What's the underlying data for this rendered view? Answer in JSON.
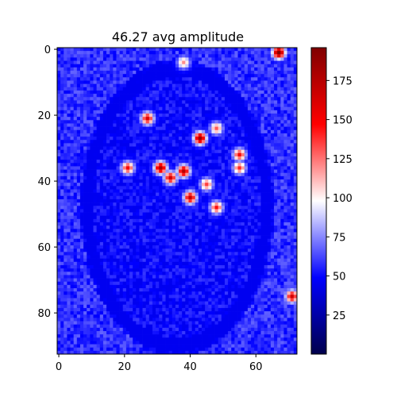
{
  "chart_data": {
    "type": "heatmap",
    "title": "46.27 avg amplitude",
    "xlabel": "",
    "ylabel": "",
    "xlim": [
      0,
      72
    ],
    "ylim": [
      92,
      0
    ],
    "x_ticks": [
      0,
      20,
      40,
      60
    ],
    "x_tick_labels": [
      "0",
      "20",
      "40",
      "60"
    ],
    "y_ticks": [
      0,
      20,
      40,
      60,
      80
    ],
    "y_tick_labels": [
      "0",
      "20",
      "40",
      "60",
      "80"
    ],
    "colormap": "seismic",
    "colorbar": {
      "vmin": 0,
      "vmax": 196,
      "ticks": [
        25,
        50,
        75,
        100,
        125,
        150,
        175
      ],
      "tick_labels": [
        "25",
        "50",
        "75",
        "100",
        "125",
        "150",
        "175"
      ]
    },
    "grid": false,
    "hotspots": [
      {
        "x": 67,
        "y": 1,
        "value": 195
      },
      {
        "x": 27,
        "y": 21,
        "value": 160
      },
      {
        "x": 43,
        "y": 27,
        "value": 185
      },
      {
        "x": 48,
        "y": 24,
        "value": 130
      },
      {
        "x": 31,
        "y": 36,
        "value": 180
      },
      {
        "x": 34,
        "y": 39,
        "value": 165
      },
      {
        "x": 38,
        "y": 37,
        "value": 175
      },
      {
        "x": 40,
        "y": 45,
        "value": 170
      },
      {
        "x": 21,
        "y": 36,
        "value": 150
      },
      {
        "x": 55,
        "y": 36,
        "value": 140
      },
      {
        "x": 48,
        "y": 48,
        "value": 145
      },
      {
        "x": 55,
        "y": 32,
        "value": 150
      },
      {
        "x": 71,
        "y": 75,
        "value": 165
      },
      {
        "x": 38,
        "y": 4,
        "value": 120
      },
      {
        "x": 45,
        "y": 41,
        "value": 135
      }
    ]
  }
}
